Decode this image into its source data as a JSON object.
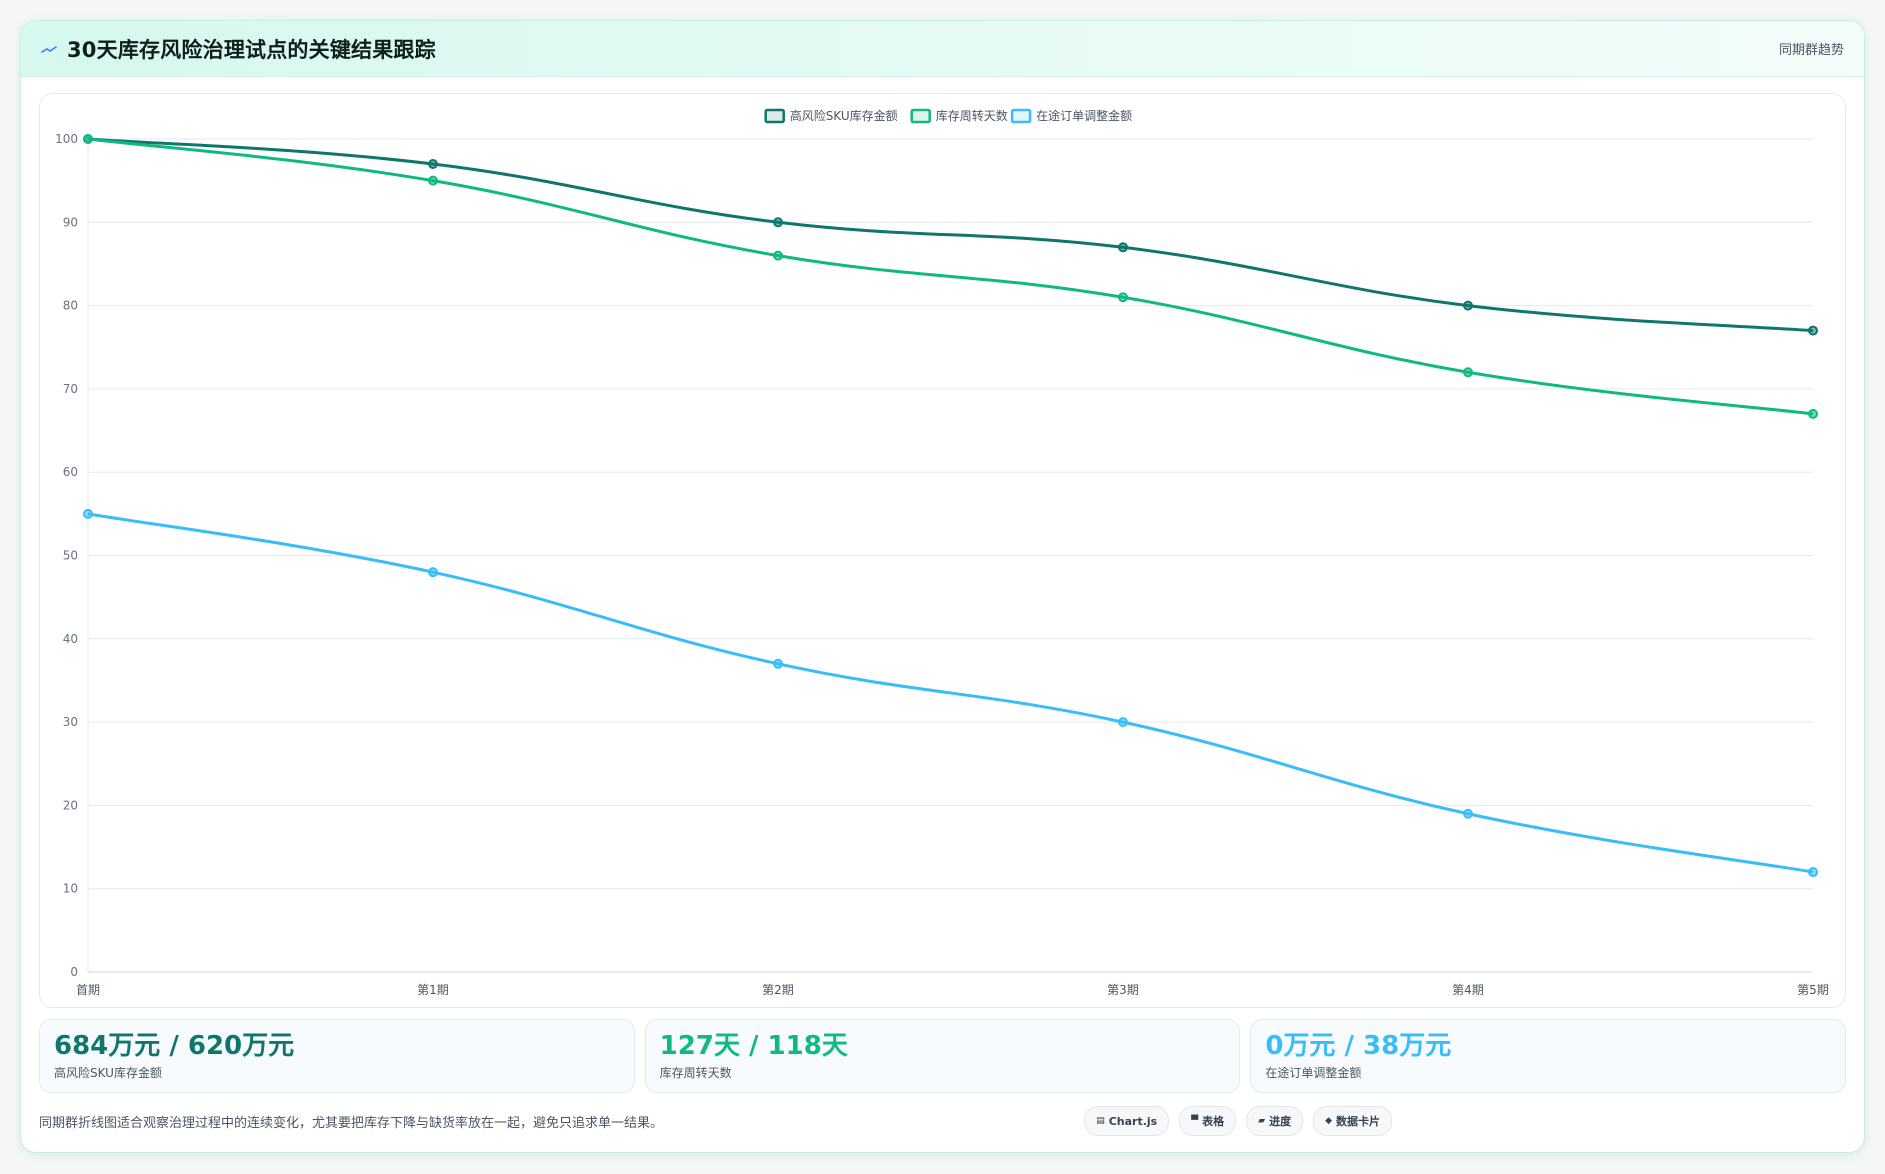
{
  "header": {
    "title": "30天库存风险治理试点的关键结果跟踪",
    "tag": "同期群趋势"
  },
  "colors": {
    "series1": "#0f766e",
    "series2": "#10b981",
    "series3": "#38bdf8"
  },
  "chart_data": {
    "type": "line",
    "categories": [
      "首期",
      "第1期",
      "第2期",
      "第3期",
      "第4期",
      "第5期"
    ],
    "series": [
      {
        "name": "高风险SKU库存金额",
        "values": [
          100,
          97,
          90,
          87,
          80,
          77
        ]
      },
      {
        "name": "库存周转天数",
        "values": [
          100,
          95,
          86,
          81,
          72,
          67
        ]
      },
      {
        "name": "在途订单调整金额",
        "values": [
          55,
          48,
          37,
          30,
          19,
          12
        ]
      }
    ],
    "ylim": [
      0,
      100
    ],
    "yticks": [
      0,
      10,
      20,
      30,
      40,
      50,
      60,
      70,
      80,
      90,
      100
    ],
    "legend_position": "top",
    "grid": true
  },
  "stats": [
    {
      "value": "684万元 / 620万元",
      "label": "高风险SKU库存金额"
    },
    {
      "value": "127天 / 118天",
      "label": "库存周转天数"
    },
    {
      "value": "0万元 / 38万元",
      "label": "在途订单调整金额"
    }
  ],
  "footer": {
    "note": "同期群折线图适合观察治理过程中的连续变化，尤其要把库存下降与缺货率放在一起，避免只追求单一结果。",
    "chips": [
      {
        "icon": "chart-icon",
        "label": "Chart.js"
      },
      {
        "icon": "table-icon",
        "label": "表格"
      },
      {
        "icon": "progress-icon",
        "label": "进度"
      },
      {
        "icon": "card-icon",
        "label": "数据卡片"
      }
    ]
  }
}
